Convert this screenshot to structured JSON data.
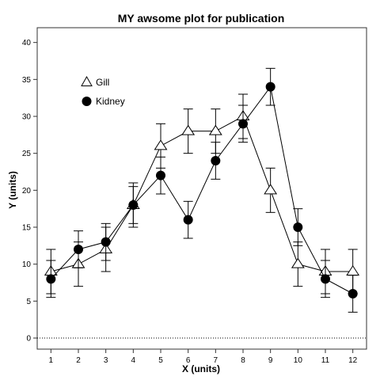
{
  "chart_data": {
    "type": "line",
    "title": "MY awsome plot for publication",
    "xlabel": "X (units)",
    "ylabel": "Y (units)",
    "x": [
      1,
      2,
      3,
      4,
      5,
      6,
      7,
      8,
      9,
      10,
      11,
      12
    ],
    "xlim": [
      0.5,
      12.5
    ],
    "ylim": [
      -1.5,
      42
    ],
    "yticks": [
      0,
      5,
      10,
      15,
      20,
      25,
      30,
      35,
      40
    ],
    "grid": false,
    "legend_position": "top-left",
    "reference_line": {
      "y": 0,
      "style": "dotted"
    },
    "series": [
      {
        "name": "Gill",
        "marker": "open-triangle",
        "values": [
          9,
          10,
          12,
          18,
          26,
          28,
          28,
          30,
          20,
          10,
          9,
          9
        ],
        "error": [
          3,
          3,
          3,
          3,
          3,
          3,
          3,
          3,
          3,
          3,
          3,
          3
        ]
      },
      {
        "name": "Kidney",
        "marker": "filled-circle",
        "values": [
          8,
          12,
          13,
          18,
          22,
          16,
          24,
          29,
          34,
          15,
          8,
          6
        ],
        "error": [
          2.5,
          2.5,
          2.5,
          2.5,
          2.5,
          2.5,
          2.5,
          2.5,
          2.5,
          2.5,
          2.5,
          2.5
        ]
      }
    ]
  }
}
